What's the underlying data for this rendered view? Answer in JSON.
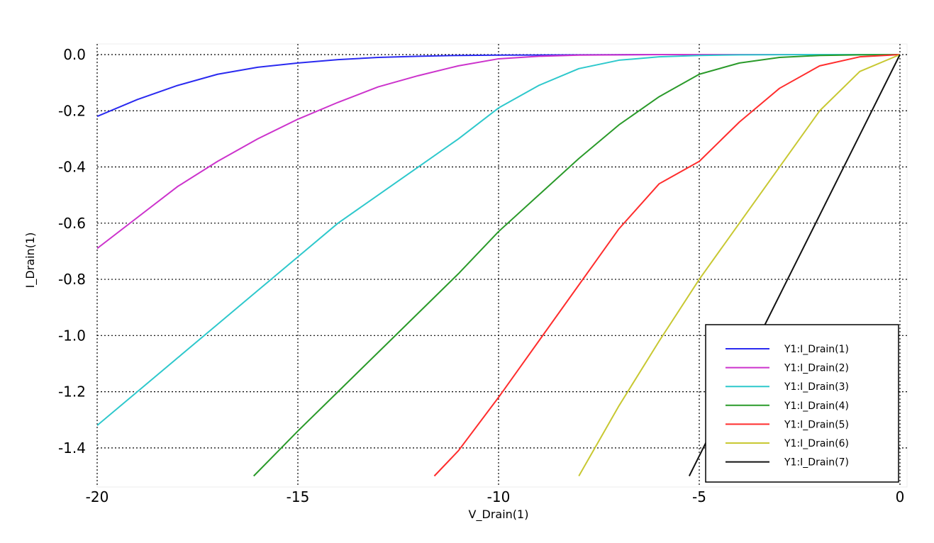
{
  "chart_data": {
    "type": "line",
    "xlabel": "V_Drain(1)",
    "ylabel": "I_Drain(1)",
    "xlim": [
      -20,
      0
    ],
    "ylim": [
      -1.5,
      0
    ],
    "grid": true,
    "legend_position": "bottom-right",
    "xticks": [
      "-20",
      "-15",
      "-10",
      "-5",
      "0"
    ],
    "yticks": [
      "0.0",
      "-0.2",
      "-0.4",
      "-0.6",
      "-0.8",
      "-1.0",
      "-1.2",
      "-1.4"
    ],
    "series": [
      {
        "name": "Y1:I_Drain(1)",
        "color": "#2a2af0",
        "x": [
          -20,
          -19,
          -18,
          -17,
          -16,
          -15,
          -14,
          -13,
          -12,
          -11,
          -10,
          -8,
          -6,
          -4,
          -2,
          0
        ],
        "y": [
          -0.22,
          -0.16,
          -0.11,
          -0.07,
          -0.045,
          -0.03,
          -0.018,
          -0.01,
          -0.006,
          -0.003,
          -0.002,
          -0.001,
          0,
          0,
          0,
          0
        ]
      },
      {
        "name": "Y1:I_Drain(2)",
        "color": "#cc33cc",
        "x": [
          -20,
          -19,
          -18,
          -17,
          -16,
          -15,
          -14,
          -13,
          -12,
          -11,
          -10,
          -9,
          -8,
          -7,
          -6,
          -4,
          -2,
          0
        ],
        "y": [
          -0.69,
          -0.58,
          -0.47,
          -0.38,
          -0.3,
          -0.23,
          -0.17,
          -0.115,
          -0.075,
          -0.04,
          -0.015,
          -0.006,
          -0.002,
          -0.001,
          0,
          0,
          0,
          0
        ]
      },
      {
        "name": "Y1:I_Drain(3)",
        "color": "#2ec8cc",
        "x": [
          -20,
          -19,
          -18,
          -17,
          -16,
          -15,
          -14,
          -13,
          -12,
          -11,
          -10,
          -9,
          -8,
          -7,
          -6,
          -5,
          -4,
          -2,
          0
        ],
        "y": [
          -1.32,
          -1.2,
          -1.08,
          -0.96,
          -0.84,
          -0.72,
          -0.6,
          -0.5,
          -0.4,
          -0.3,
          -0.19,
          -0.11,
          -0.05,
          -0.02,
          -0.008,
          -0.003,
          -0.001,
          0,
          0
        ]
      },
      {
        "name": "Y1:I_Drain(4)",
        "color": "#2a9a2a",
        "x": [
          -16.1,
          -15,
          -14,
          -13,
          -12,
          -11,
          -10,
          -9,
          -8,
          -7,
          -6,
          -5,
          -4,
          -3,
          -2,
          -1,
          0
        ],
        "y": [
          -1.5,
          -1.34,
          -1.2,
          -1.06,
          -0.92,
          -0.78,
          -0.63,
          -0.5,
          -0.37,
          -0.25,
          -0.15,
          -0.07,
          -0.03,
          -0.01,
          -0.003,
          -0.001,
          0
        ]
      },
      {
        "name": "Y1:I_Drain(5)",
        "color": "#ff2d2d",
        "x": [
          -11.6,
          -11,
          -10,
          -9,
          -8,
          -7,
          -6,
          -5,
          -4,
          -3,
          -2,
          -1,
          0
        ],
        "y": [
          -1.5,
          -1.41,
          -1.22,
          -1.02,
          -0.82,
          -0.62,
          -0.46,
          -0.38,
          -0.24,
          -0.12,
          -0.04,
          -0.008,
          0
        ]
      },
      {
        "name": "Y1:I_Drain(6)",
        "color": "#c8c832",
        "x": [
          -8.0,
          -7,
          -6,
          -5,
          -4,
          -3,
          -2,
          -1,
          0
        ],
        "y": [
          -1.5,
          -1.25,
          -1.02,
          -0.8,
          -0.6,
          -0.4,
          -0.2,
          -0.06,
          0
        ]
      },
      {
        "name": "Y1:I_Drain(7)",
        "color": "#111111",
        "x": [
          -5.25,
          0
        ],
        "y": [
          -1.5,
          0
        ]
      }
    ]
  }
}
